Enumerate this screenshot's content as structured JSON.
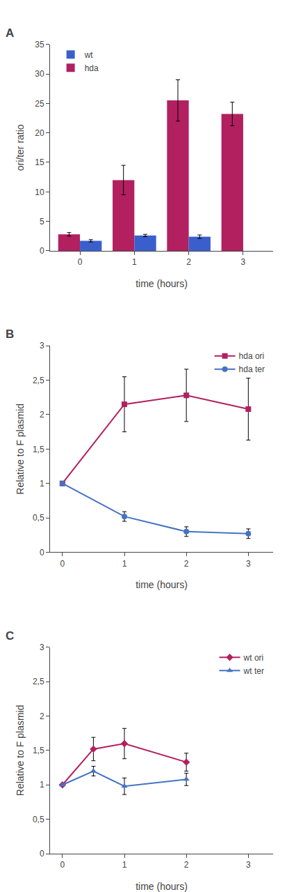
{
  "chart_data": [
    {
      "type": "bar",
      "title": "A",
      "x": [
        0,
        1,
        2,
        3
      ],
      "series": [
        {
          "name": "hda",
          "color": "#b22060",
          "values": [
            2.8,
            12.0,
            25.5,
            23.2
          ],
          "errors": [
            0.3,
            2.5,
            3.5,
            2.0
          ]
        },
        {
          "name": "wt",
          "color": "#3a5fcd",
          "values": [
            1.7,
            2.6,
            2.4,
            null
          ],
          "errors": [
            0.2,
            0.2,
            0.3,
            null
          ]
        }
      ],
      "xlabel": "time (hours)",
      "ylabel": "ori/ter ratio",
      "xlim": [
        -0.55,
        3.55
      ],
      "xticks": [
        0,
        1,
        2,
        3
      ],
      "ylim": [
        0,
        35
      ],
      "yticks": [
        0,
        5,
        10,
        15,
        20,
        25,
        30,
        35
      ],
      "grid": false,
      "legend": "upper left"
    },
    {
      "type": "line",
      "title": "B",
      "x": [
        0,
        1,
        2,
        3
      ],
      "series": [
        {
          "name": "hda ori",
          "color": "#b22060",
          "marker": "square",
          "values": [
            1.0,
            2.15,
            2.28,
            2.08
          ],
          "errors": [
            0.0,
            0.4,
            0.38,
            0.45
          ]
        },
        {
          "name": "hda ter",
          "color": "#4472c4",
          "marker": "circle",
          "values": [
            1.0,
            0.52,
            0.3,
            0.27
          ],
          "errors": [
            0.0,
            0.07,
            0.07,
            0.07
          ]
        }
      ],
      "xlabel": "time (hours)",
      "ylabel": "Relative to F plasmid",
      "xlim": [
        -0.2,
        3.4
      ],
      "xticks": [
        0,
        1,
        2,
        3
      ],
      "ylim": [
        0,
        3
      ],
      "yticks": [
        0,
        {
          "value": 0.5,
          "label": "0,5"
        },
        1,
        {
          "value": 1.5,
          "label": "1,5"
        },
        2,
        {
          "value": 2.5,
          "label": "2,5"
        },
        3
      ],
      "grid": false,
      "legend": "upper right"
    },
    {
      "type": "line",
      "title": "C",
      "x": [
        0,
        0.5,
        1,
        2
      ],
      "series": [
        {
          "name": "wt ori",
          "color": "#b22060",
          "marker": "diamond",
          "values": [
            1.0,
            1.52,
            1.6,
            1.33
          ],
          "errors": [
            0.0,
            0.17,
            0.22,
            0.13
          ]
        },
        {
          "name": "wt ter",
          "color": "#4472c4",
          "marker": "triangle-up",
          "values": [
            1.0,
            1.2,
            0.98,
            1.08
          ],
          "errors": [
            0.0,
            0.07,
            0.12,
            0.09
          ]
        }
      ],
      "xlabel": "time (hours)",
      "ylabel": "Relative to F plasmid",
      "xlim": [
        -0.2,
        3.4
      ],
      "xticks": [
        0,
        1,
        2,
        3
      ],
      "ylim": [
        0,
        3
      ],
      "yticks": [
        0,
        {
          "value": 0.5,
          "label": "0,5"
        },
        1,
        {
          "value": 1.5,
          "label": "1,5"
        },
        2,
        {
          "value": 2.5,
          "label": "2,5"
        },
        3
      ],
      "grid": false,
      "legend": "upper right"
    }
  ]
}
